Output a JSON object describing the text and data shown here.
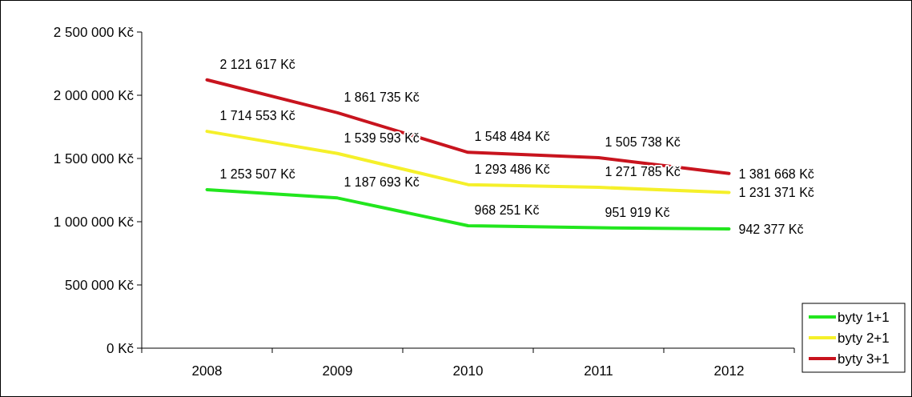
{
  "chart_data": {
    "type": "line",
    "categories": [
      "2008",
      "2009",
      "2010",
      "2011",
      "2012"
    ],
    "ylim": [
      0,
      2500000
    ],
    "yticks": [
      {
        "value": 0,
        "label": "0 Kč"
      },
      {
        "value": 500000,
        "label": "500 000 Kč"
      },
      {
        "value": 1000000,
        "label": "1 000 000 Kč"
      },
      {
        "value": 1500000,
        "label": "1 500 000 Kč"
      },
      {
        "value": 2000000,
        "label": "2 000 000 Kč"
      },
      {
        "value": 2500000,
        "label": "2 500 000 Kč"
      }
    ],
    "grid": false,
    "legend": "bottom right",
    "marker": "none",
    "line_style": "solid",
    "series": [
      {
        "name": "byty 1+1",
        "color": "#22e61e",
        "values": [
          1253507,
          1187693,
          968251,
          951919,
          942377
        ],
        "value_labels": [
          "1 253 507 Kč",
          "1 187 693 Kč",
          "968 251 Kč",
          "951 919 Kč",
          "942 377 Kč"
        ]
      },
      {
        "name": "byty 2+1",
        "color": "#f5f02a",
        "values": [
          1714553,
          1539593,
          1293486,
          1271785,
          1231371
        ],
        "value_labels": [
          "1 714 553 Kč",
          "1 539 593 Kč",
          "1 293 486 Kč",
          "1 271 785 Kč",
          "1 231 371 Kč"
        ]
      },
      {
        "name": "byty 3+1",
        "color": "#c8141e",
        "values": [
          2121617,
          1861735,
          1548484,
          1505738,
          1381668
        ],
        "value_labels": [
          "2 121 617 Kč",
          "1 861 735 Kč",
          "1 548 484 Kč",
          "1 505 738 Kč",
          "1 381 668 Kč"
        ]
      }
    ]
  }
}
